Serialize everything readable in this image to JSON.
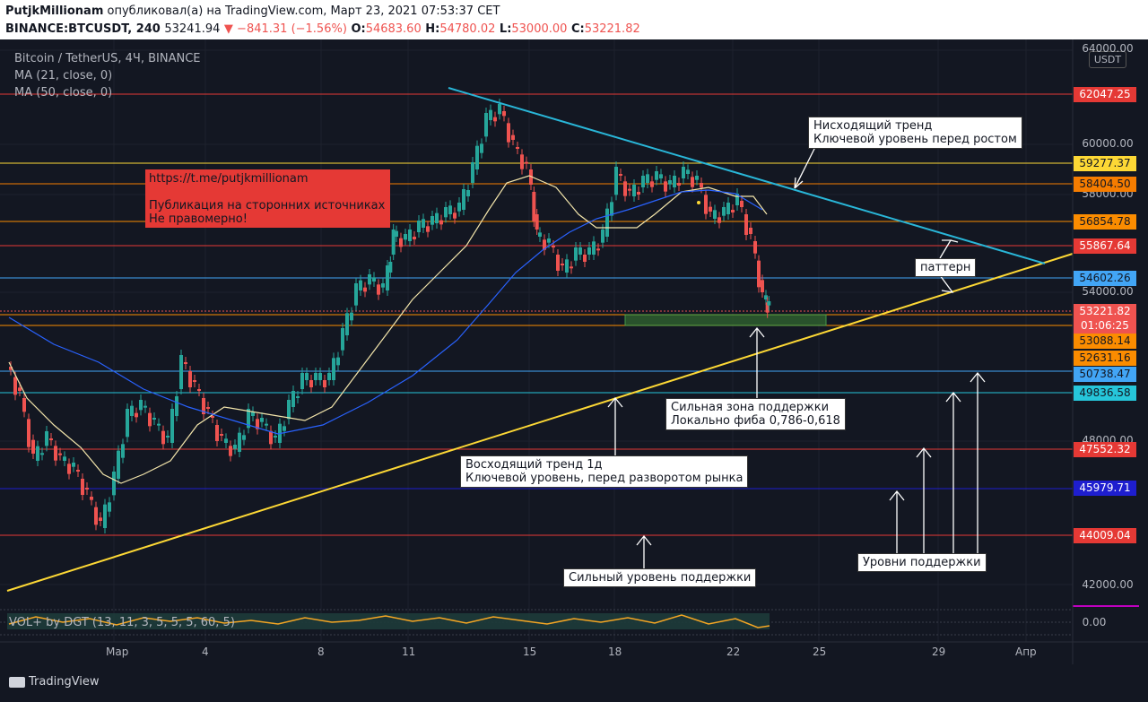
{
  "header": {
    "author": "PutjkMillionam",
    "published_text": "опубликовал(а) на TradingView.com, Март 23, 2021 07:53:37 CET",
    "symbol": "BINANCE:BTCUSDT, 240",
    "last": "53241.94",
    "change": "▼ −841.31 (−1.56%)",
    "open_label": "O:",
    "open": "54683.60",
    "high_label": "H:",
    "high": "54780.02",
    "low_label": "L:",
    "low": "53000.00",
    "close_label": "C:",
    "close": "53221.82"
  },
  "legend": {
    "title": "Bitcoin / TetherUS, 4Ч, BINANCE",
    "ma21": "MA (21, close, 0)",
    "ma50": "MA (50, close, 0)",
    "volume": "VOL+ by DGT (13, 11, 3, 5, 5, 5, 60, 5)"
  },
  "promo": {
    "line1": "https://t.me/putjkmillionam",
    "line2": "Публикация на сторонних источниках",
    "line3": "Не правомерно!"
  },
  "annotations": {
    "downtrend": "Нисходящий тренд\nКлючевой уровень перед ростом",
    "pattern": "паттерн",
    "support_zone": "Сильная зона поддержки\nЛокально фиба 0,786-0,618",
    "uptrend": "Восходящий тренд 1д\nКлючевой уровень, перед разворотом рынка",
    "strong_support": "Сильный уровень поддержки",
    "support_levels": "Уровни поддержки"
  },
  "price_axis": {
    "currency": "USDT",
    "ticks": [
      "64000.00",
      "60000.00",
      "58000.00",
      "54000.00",
      "48000.00",
      "42000.00",
      "0.00"
    ]
  },
  "levels": [
    {
      "value": "62047.25",
      "bg": "#e53935",
      "fg": "#ffffff"
    },
    {
      "value": "59277.37",
      "bg": "#fdd835",
      "fg": "#131722"
    },
    {
      "value": "58404.50",
      "bg": "#f57c00",
      "fg": "#131722"
    },
    {
      "value": "56854.78",
      "bg": "#fb8c00",
      "fg": "#131722"
    },
    {
      "value": "55867.64",
      "bg": "#e53935",
      "fg": "#ffffff"
    },
    {
      "value": "54602.26",
      "bg": "#42a5f5",
      "fg": "#131722"
    },
    {
      "value": "53221.82",
      "bg": "#ef5350",
      "fg": "#ffffff"
    },
    {
      "value": "01:06:25",
      "bg": "#ef5350",
      "fg": "#ffffff"
    },
    {
      "value": "53088.14",
      "bg": "#fb8c00",
      "fg": "#131722"
    },
    {
      "value": "52631.16",
      "bg": "#fb8c00",
      "fg": "#131722"
    },
    {
      "value": "50738.47",
      "bg": "#42a5f5",
      "fg": "#131722"
    },
    {
      "value": "49836.58",
      "bg": "#26c6da",
      "fg": "#131722"
    },
    {
      "value": "47552.32",
      "bg": "#e53935",
      "fg": "#ffffff"
    },
    {
      "value": "45979.71",
      "bg": "#1e1ecf",
      "fg": "#ffffff"
    },
    {
      "value": "44009.04",
      "bg": "#e53935",
      "fg": "#ffffff"
    }
  ],
  "time_axis": [
    "Мар",
    "4",
    "8",
    "11",
    "15",
    "18",
    "22",
    "25",
    "29",
    "Апр"
  ],
  "footer": {
    "brand": "TradingView"
  },
  "colors": {
    "background": "#131722",
    "up": "#26a69a",
    "down": "#ef5350",
    "uptrend_line": "#fdd835",
    "downtrend_line": "#29b6d8",
    "ma21": "#f3e5ab",
    "ma50": "#2962ff"
  }
}
